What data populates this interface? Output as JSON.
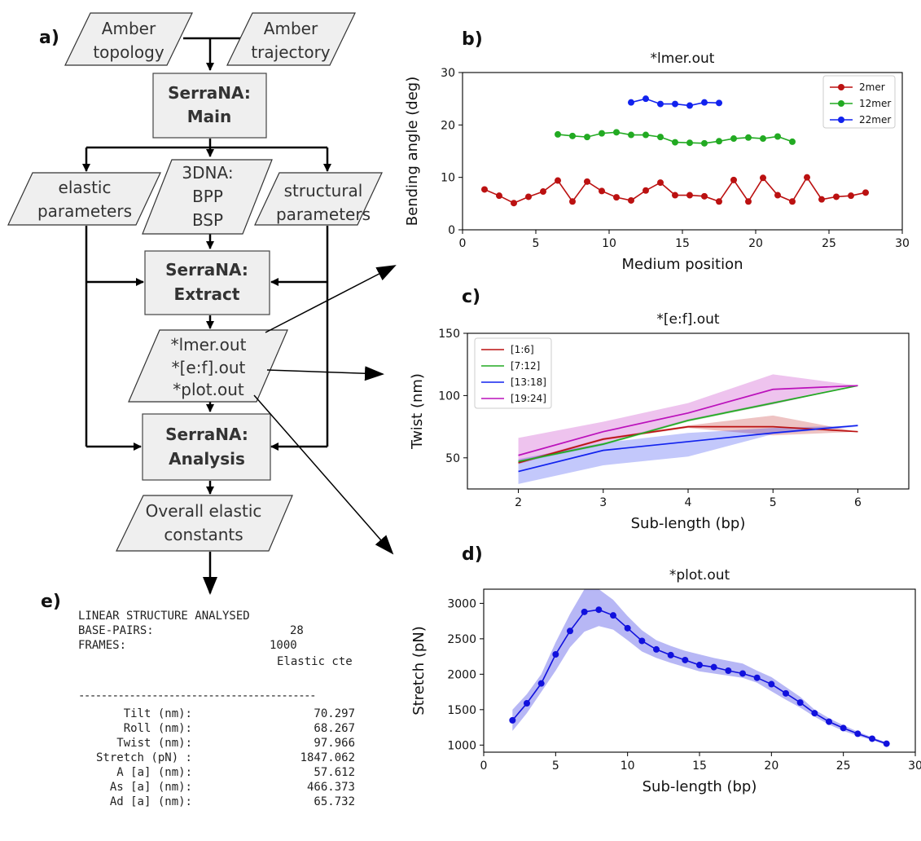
{
  "panels": {
    "a": "a)",
    "b": "b)",
    "c": "c)",
    "d": "d)",
    "e": "e)"
  },
  "flowchart": {
    "inputs": [
      [
        "Amber",
        "topology"
      ],
      [
        "Amber",
        "trajectory"
      ]
    ],
    "main": [
      "SerraNA:",
      "Main"
    ],
    "params": {
      "elastic": [
        "elastic",
        "parameters"
      ],
      "threedna": [
        "3DNA:",
        "BPP",
        "BSP"
      ],
      "structural": [
        "structural",
        "parameters"
      ]
    },
    "extract": [
      "SerraNA:",
      "Extract"
    ],
    "outputs": [
      "*lmer.out",
      "*[e:f].out",
      "*plot.out"
    ],
    "analysis": [
      "SerraNA:",
      "Analysis"
    ],
    "overall": [
      "Overall elastic",
      "constants"
    ]
  },
  "report": {
    "title": "LINEAR STRUCTURE ANALYSED",
    "basepairs_label": "BASE-PAIRS:",
    "basepairs_value": "28",
    "frames_label": "FRAMES:",
    "frames_value": "1000",
    "column_header": "Elastic cte",
    "separator": "------------------------------------------",
    "rows": [
      {
        "label": "Tilt (nm):",
        "value": "70.297"
      },
      {
        "label": "Roll (nm):",
        "value": "68.267"
      },
      {
        "label": "Twist (nm):",
        "value": "97.966"
      },
      {
        "label": "Stretch (pN) :",
        "value": "1847.062"
      },
      {
        "label": "A [a] (nm):",
        "value": "57.612"
      },
      {
        "label": "As [a] (nm):",
        "value": "466.373"
      },
      {
        "label": "Ad [a] (nm):",
        "value": "65.732"
      }
    ]
  },
  "chart_data": [
    {
      "panel": "b",
      "type": "line",
      "title": "*lmer.out",
      "xlabel": "Medium position",
      "ylabel": "Bending angle (deg)",
      "xlim": [
        0,
        30
      ],
      "ylim": [
        0,
        30
      ],
      "xticks": [
        0,
        5,
        10,
        15,
        20,
        25,
        30
      ],
      "yticks": [
        0,
        10,
        20,
        30
      ],
      "legend": "top-right",
      "series": [
        {
          "name": "2mer",
          "color": "#bb1111",
          "x": [
            1.5,
            2.5,
            3.5,
            4.5,
            5.5,
            6.5,
            7.5,
            8.5,
            9.5,
            10.5,
            11.5,
            12.5,
            13.5,
            14.5,
            15.5,
            16.5,
            17.5,
            18.5,
            19.5,
            20.5,
            21.5,
            22.5,
            23.5,
            24.5,
            25.5,
            26.5,
            27.5
          ],
          "y": [
            7.7,
            6.5,
            5.1,
            6.3,
            7.3,
            9.4,
            5.4,
            9.2,
            7.4,
            6.2,
            5.6,
            7.5,
            9.0,
            6.6,
            6.6,
            6.4,
            5.4,
            9.5,
            5.4,
            9.9,
            6.6,
            5.4,
            10.0,
            5.8,
            6.3,
            6.5,
            7.1
          ]
        },
        {
          "name": "12mer",
          "color": "#22aa22",
          "x": [
            6.5,
            7.5,
            8.5,
            9.5,
            10.5,
            11.5,
            12.5,
            13.5,
            14.5,
            15.5,
            16.5,
            17.5,
            18.5,
            19.5,
            20.5,
            21.5,
            22.5
          ],
          "y": [
            18.2,
            17.9,
            17.7,
            18.4,
            18.6,
            18.1,
            18.1,
            17.7,
            16.7,
            16.6,
            16.5,
            16.9,
            17.4,
            17.6,
            17.4,
            17.8,
            16.8
          ]
        },
        {
          "name": "22mer",
          "color": "#1122ee",
          "x": [
            11.5,
            12.5,
            13.5,
            14.5,
            15.5,
            16.5,
            17.5
          ],
          "y": [
            24.3,
            25.0,
            24.0,
            24.0,
            23.7,
            24.3,
            24.2
          ]
        }
      ]
    },
    {
      "panel": "c",
      "type": "area",
      "title": "*[e:f].out",
      "xlabel": "Sub-length (bp)",
      "ylabel": "Twist (nm)",
      "xlim": [
        1.4,
        6.6
      ],
      "ylim": [
        25,
        150
      ],
      "xticks": [
        2,
        3,
        4,
        5,
        6
      ],
      "yticks": [
        50,
        100,
        150
      ],
      "legend": "top-left",
      "x": [
        2,
        3,
        4,
        5,
        6
      ],
      "series": [
        {
          "name": "[1:6]",
          "color": "#bb1111",
          "values": [
            46,
            65,
            75,
            75,
            71
          ],
          "lower": [
            45,
            64,
            74,
            68,
            71
          ],
          "upper": [
            47,
            66,
            76,
            84,
            71
          ]
        },
        {
          "name": "[7:12]",
          "color": "#22aa22",
          "values": [
            47,
            61,
            80,
            94,
            108
          ],
          "lower": [
            46,
            60,
            79,
            93,
            108
          ],
          "upper": [
            48,
            62,
            81,
            95,
            108
          ]
        },
        {
          "name": "[13:18]",
          "color": "#1122ee",
          "values": [
            39,
            56,
            63,
            70,
            76
          ],
          "lower": [
            29,
            44,
            51,
            69,
            75
          ],
          "upper": [
            49,
            62,
            70,
            74,
            76
          ]
        },
        {
          "name": "[19:24]",
          "color": "#bb11bb",
          "values": [
            52,
            71,
            86,
            105,
            108
          ],
          "lower": [
            46,
            62,
            80,
            93,
            108
          ],
          "upper": [
            66,
            79,
            94,
            117,
            108
          ]
        }
      ]
    },
    {
      "panel": "d",
      "type": "line",
      "title": "*plot.out",
      "xlabel": "Sub-length (bp)",
      "ylabel": "Stretch (pN)",
      "xlim": [
        0,
        30
      ],
      "ylim": [
        900,
        3200
      ],
      "xticks": [
        0,
        5,
        10,
        15,
        20,
        25,
        30
      ],
      "yticks": [
        1000,
        1500,
        2000,
        2500,
        3000
      ],
      "series": [
        {
          "name": "",
          "color": "#1111dd",
          "x": [
            2,
            3,
            4,
            5,
            6,
            7,
            8,
            9,
            10,
            11,
            12,
            13,
            14,
            15,
            16,
            17,
            18,
            19,
            20,
            21,
            22,
            23,
            24,
            25,
            26,
            27,
            28
          ],
          "y": [
            1350,
            1590,
            1870,
            2280,
            2610,
            2880,
            2910,
            2830,
            2650,
            2470,
            2350,
            2270,
            2200,
            2130,
            2100,
            2050,
            2010,
            1950,
            1860,
            1730,
            1600,
            1450,
            1330,
            1240,
            1160,
            1090,
            1020
          ],
          "lower": [
            1200,
            1450,
            1750,
            2050,
            2380,
            2600,
            2680,
            2630,
            2480,
            2320,
            2230,
            2160,
            2100,
            2040,
            2010,
            1980,
            1950,
            1880,
            1760,
            1640,
            1530,
            1400,
            1290,
            1200,
            1130,
            1070,
            1000
          ],
          "upper": [
            1500,
            1720,
            2000,
            2450,
            2850,
            3200,
            3200,
            3050,
            2820,
            2620,
            2480,
            2400,
            2330,
            2280,
            2230,
            2190,
            2150,
            2050,
            1960,
            1820,
            1680,
            1500,
            1380,
            1280,
            1190,
            1110,
            1040
          ]
        }
      ]
    }
  ]
}
